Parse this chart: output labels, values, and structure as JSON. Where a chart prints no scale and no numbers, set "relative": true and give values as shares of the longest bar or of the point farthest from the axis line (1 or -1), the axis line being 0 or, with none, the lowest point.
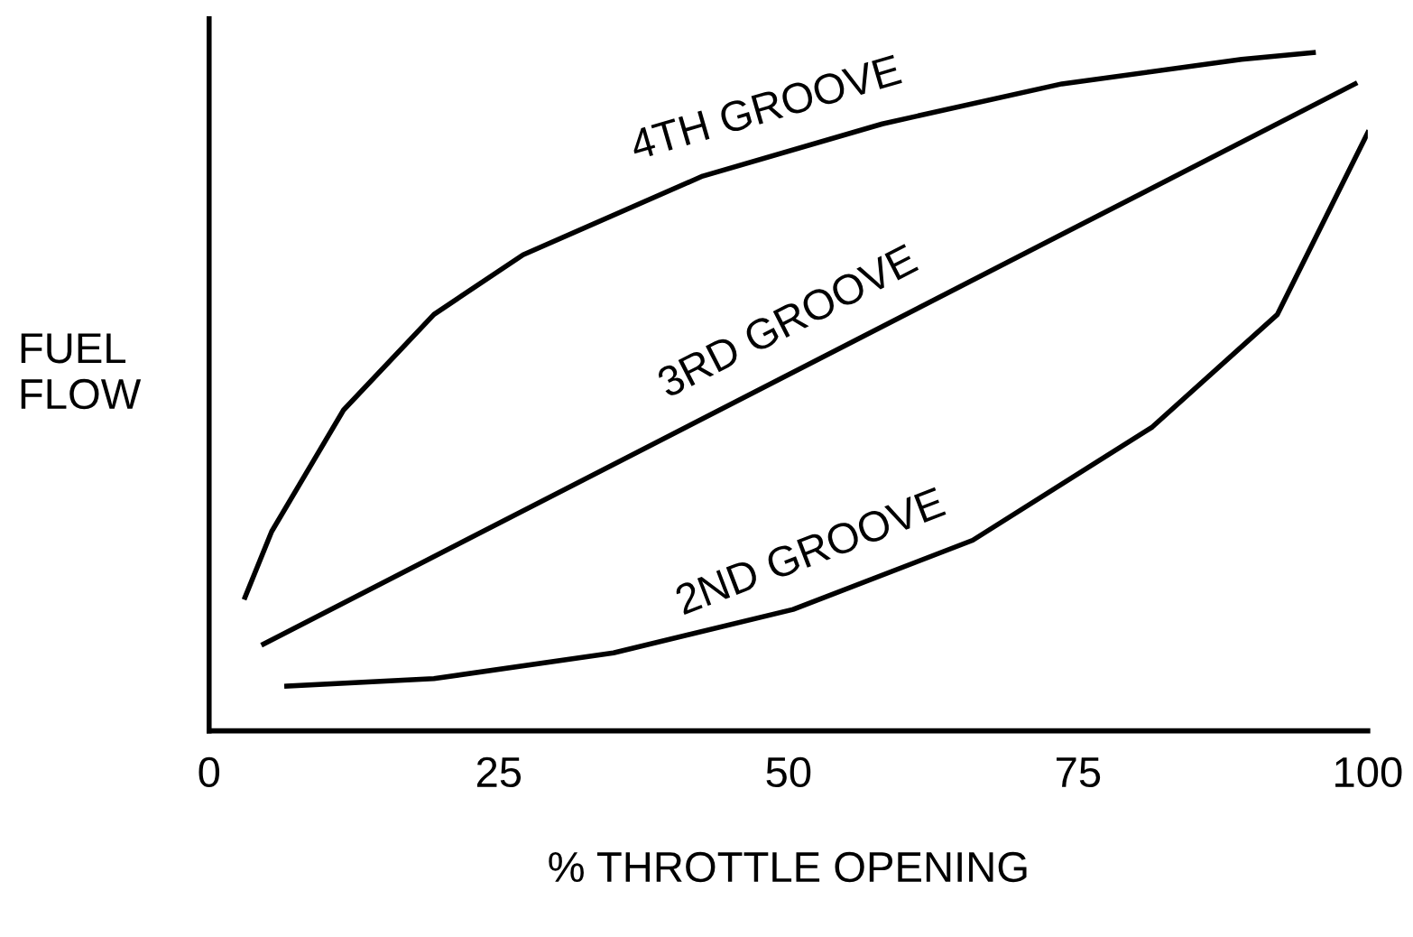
{
  "chart_data": {
    "type": "line",
    "relative": true,
    "xlabel": "% THROTTLE OPENING",
    "ylabel": "FUEL\nFLOW",
    "xlim": [
      0,
      100
    ],
    "xticks": [
      0,
      25,
      50,
      75,
      100
    ],
    "tick_labels": "x",
    "grid": false,
    "marker": "none",
    "line_style": "solid",
    "series": [
      {
        "name": "4TH GROOVE",
        "color": "#000000",
        "x": [
          3.1,
          5.4,
          11.6,
          19.4,
          27.1,
          42.6,
          58.1,
          73.6,
          89.1,
          95.3
        ],
        "values": [
          0.197,
          0.294,
          0.473,
          0.614,
          0.702,
          0.818,
          0.895,
          0.954,
          0.99,
          1.0
        ]
      },
      {
        "name": "3RD GROOVE",
        "color": "#000000",
        "x": [
          4.7,
          98.9
        ],
        "values": [
          0.128,
          0.954
        ]
      },
      {
        "name": "2ND GROOVE",
        "color": "#000000",
        "x": [
          6.7,
          19.4,
          34.9,
          50.4,
          65.9,
          81.4,
          92.2,
          100
        ],
        "values": [
          0.066,
          0.077,
          0.115,
          0.179,
          0.281,
          0.448,
          0.614,
          0.882
        ]
      }
    ]
  }
}
